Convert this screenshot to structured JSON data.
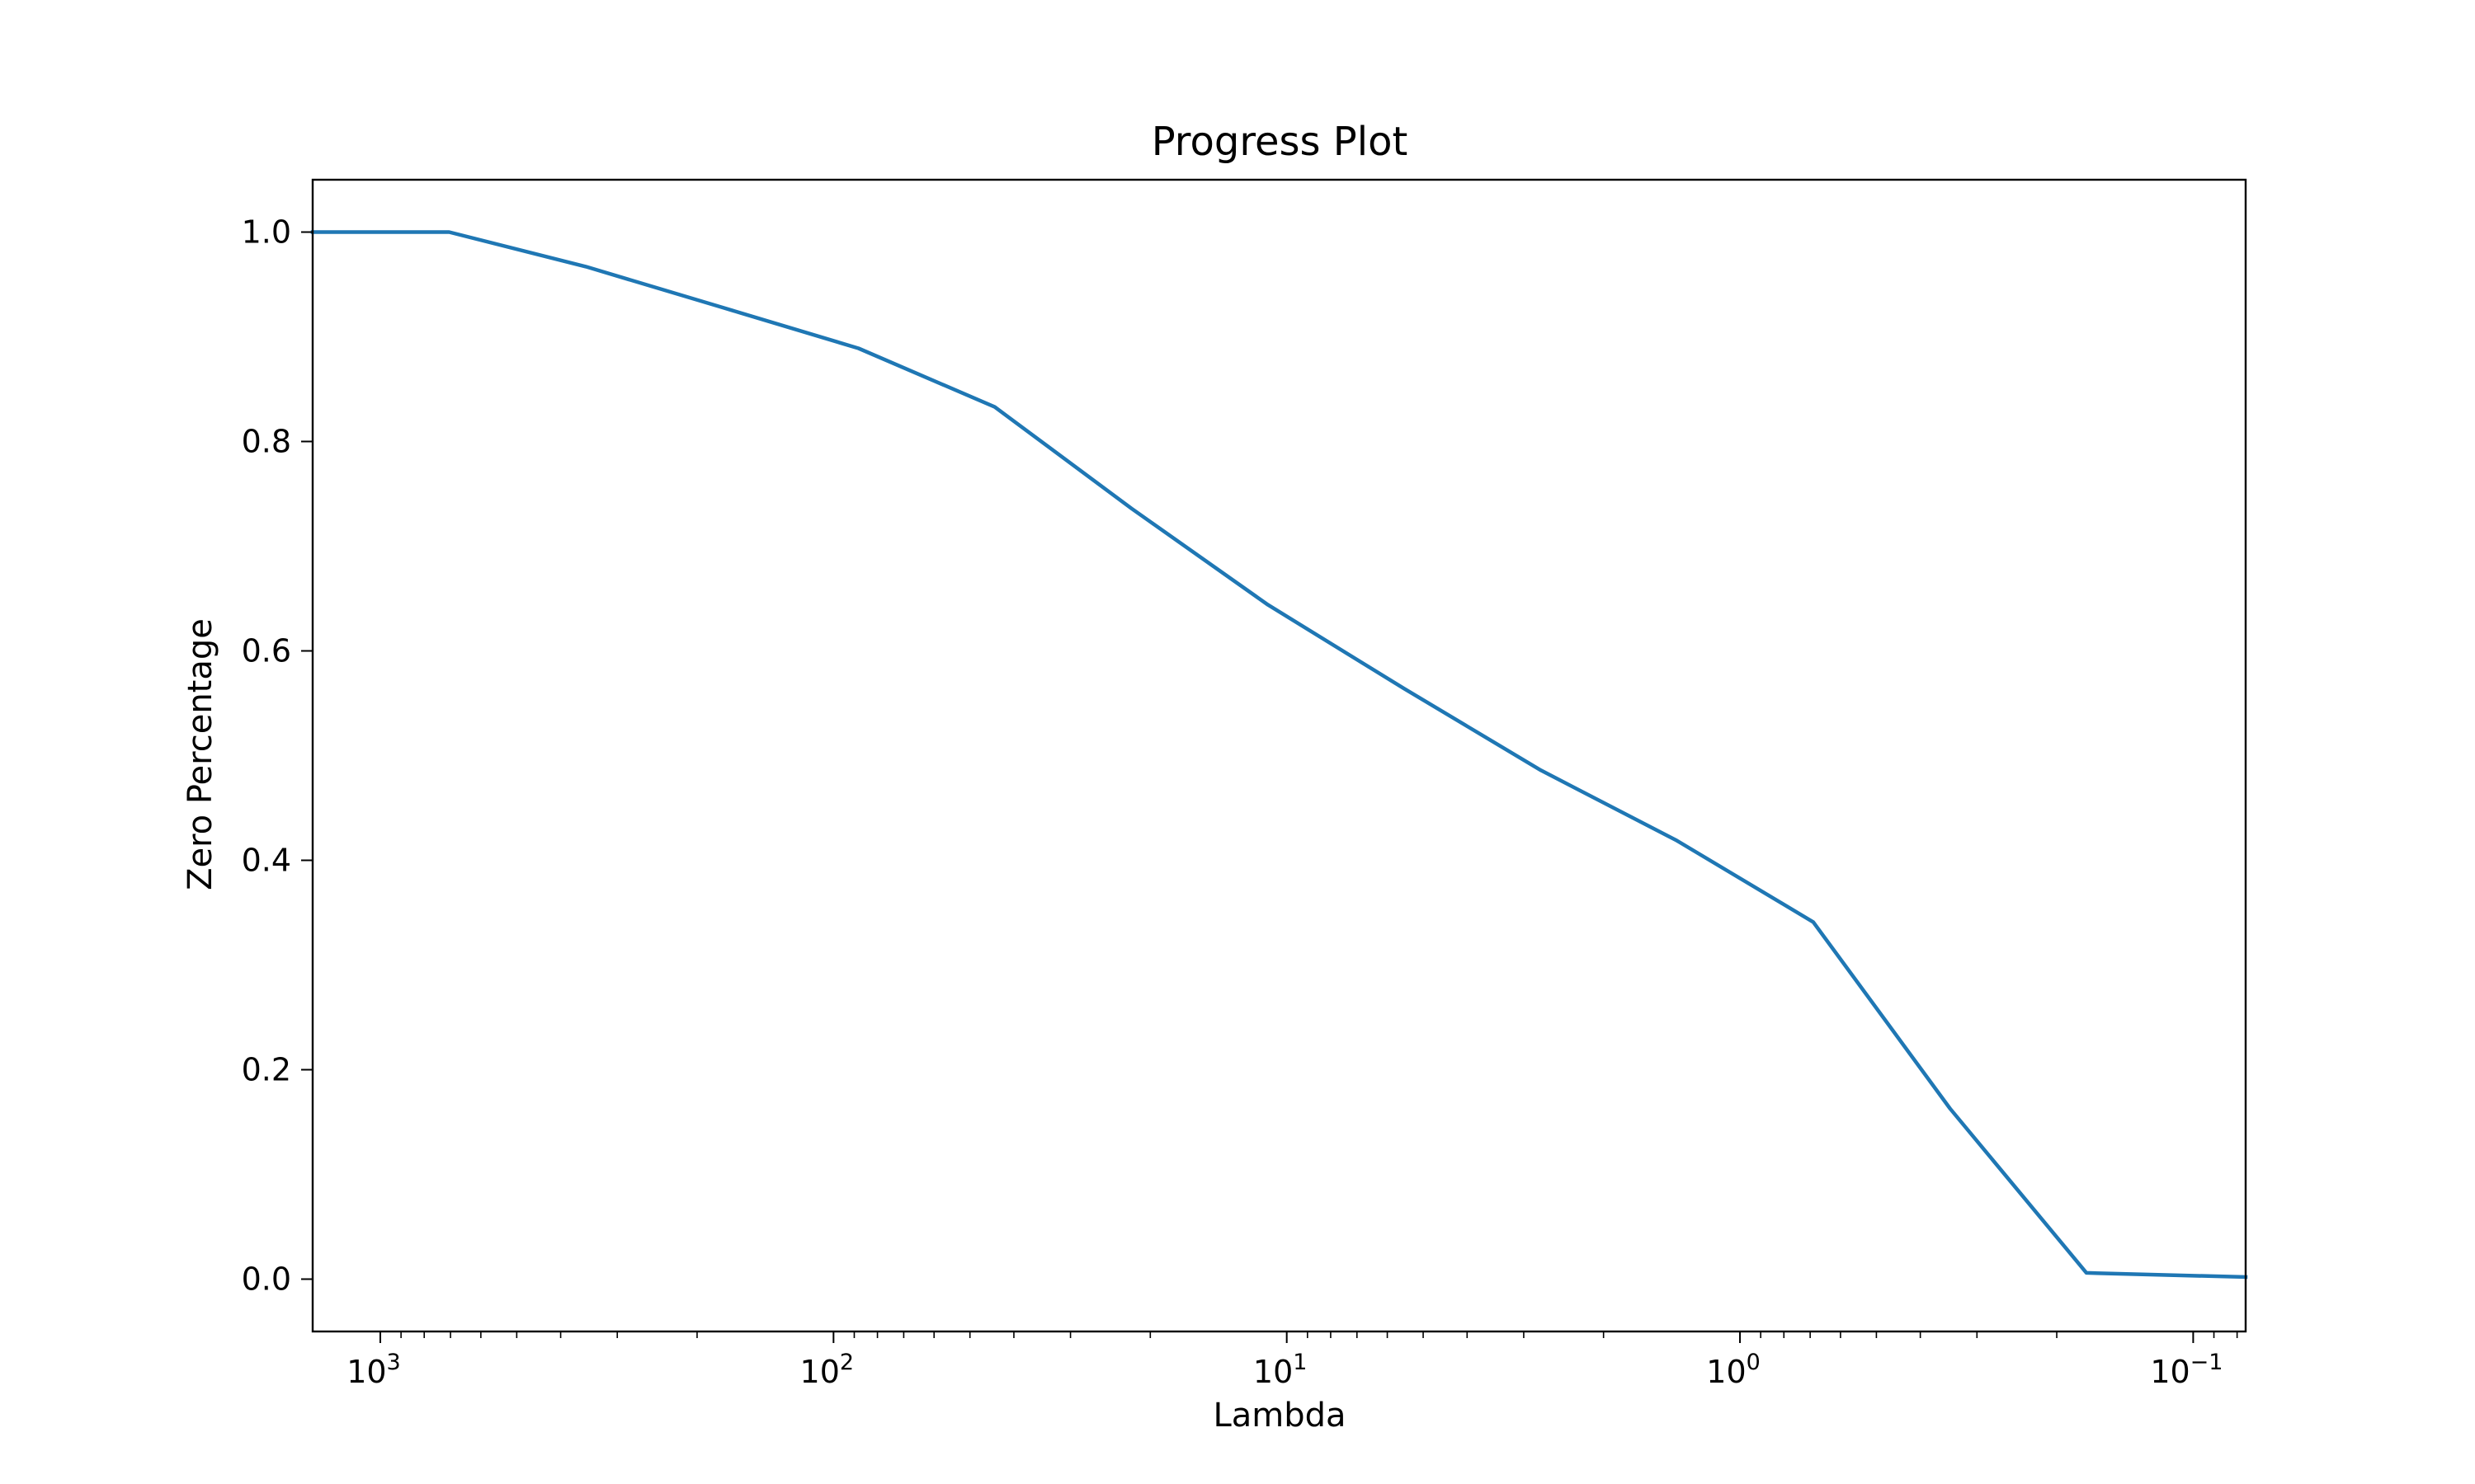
{
  "chart_data": {
    "type": "line",
    "title": "Progress Plot",
    "xlabel": "Lambda",
    "ylabel": "Zero Percentage",
    "x_scale": "log",
    "x_reversed": true,
    "xlim": [
      1410,
      0.0766
    ],
    "ylim": [
      -0.05,
      1.05
    ],
    "x_ticks": [
      {
        "value": 1000,
        "label": "10",
        "exp": "3"
      },
      {
        "value": 100,
        "label": "10",
        "exp": "2"
      },
      {
        "value": 10,
        "label": "10",
        "exp": "1"
      },
      {
        "value": 1,
        "label": "10",
        "exp": "0"
      },
      {
        "value": 0.1,
        "label": "10",
        "exp": "−1"
      }
    ],
    "y_ticks": [
      {
        "value": 0.0,
        "label": "0.0"
      },
      {
        "value": 0.2,
        "label": "0.2"
      },
      {
        "value": 0.4,
        "label": "0.4"
      },
      {
        "value": 0.6,
        "label": "0.6"
      },
      {
        "value": 0.8,
        "label": "0.8"
      },
      {
        "value": 1.0,
        "label": "1.0"
      }
    ],
    "grid": false,
    "series": [
      {
        "color": "#1f77b4",
        "x": [
          1410,
          705,
          352,
          176,
          88.1,
          44.1,
          22.0,
          11.0,
          5.51,
          2.75,
          1.38,
          0.689,
          0.344,
          0.172,
          0.0766
        ],
        "y": [
          1.0,
          1.0,
          0.967,
          0.928,
          0.889,
          0.833,
          0.736,
          0.644,
          0.564,
          0.486,
          0.419,
          0.341,
          0.163,
          0.006,
          0.002
        ]
      }
    ]
  }
}
